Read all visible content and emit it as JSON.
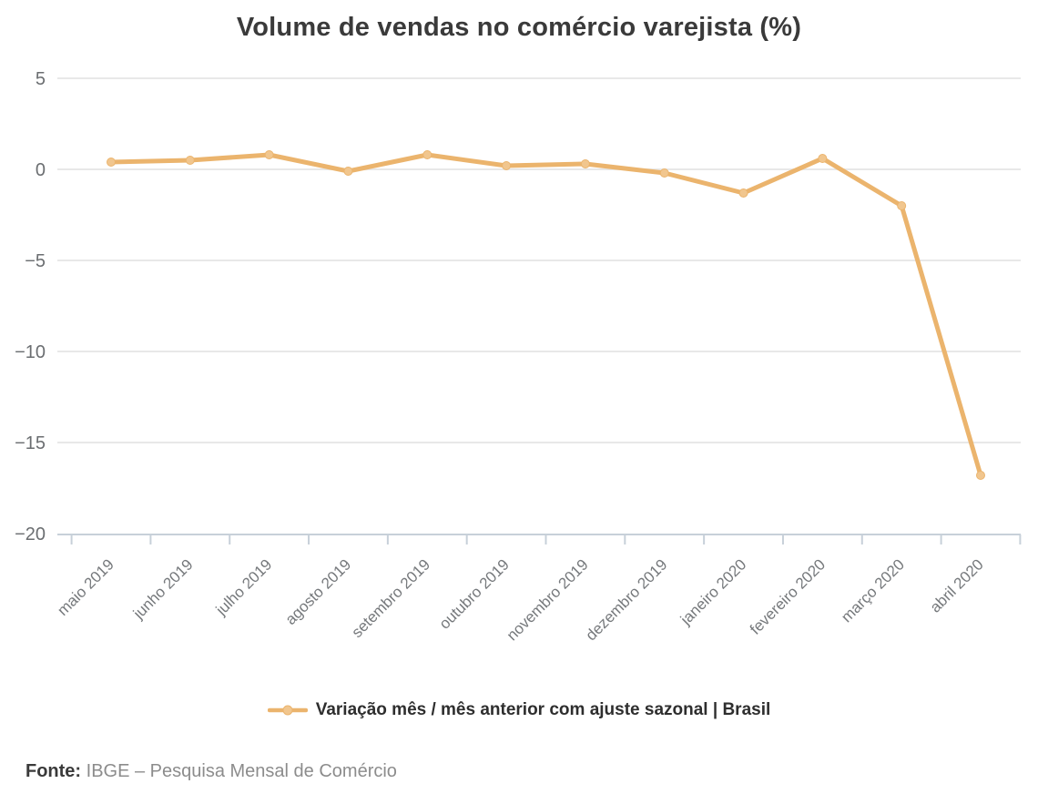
{
  "title": "Volume de vendas no comércio varejista (%)",
  "legend": {
    "label": "Variação mês / mês anterior com ajuste sazonal | Brasil"
  },
  "footer": {
    "label": "Fonte:",
    "text": "IBGE – Pesquisa Mensal de Comércio"
  },
  "colors": {
    "line": "#ebb46d",
    "marker": "#f1c68e",
    "grid": "#e8e8e8",
    "axis": "#c7d0d9",
    "ytick_text": "#6b6e71",
    "xtick_text": "#76797c",
    "title_text": "#3a3a3a",
    "legend_text": "#2e2e2e",
    "source_text": "#8c8c8c"
  },
  "chart_data": {
    "type": "line",
    "title": "Volume de vendas no comércio varejista (%)",
    "xlabel": "",
    "ylabel": "",
    "categories": [
      "maio 2019",
      "junho 2019",
      "julho 2019",
      "agosto 2019",
      "setembro 2019",
      "outubro 2019",
      "novembro 2019",
      "dezembro 2019",
      "janeiro 2020",
      "fevereiro 2020",
      "março 2020",
      "abril 2020"
    ],
    "series": [
      {
        "name": "Variação mês / mês anterior com ajuste sazonal | Brasil",
        "values": [
          0.4,
          0.5,
          0.8,
          -0.1,
          0.8,
          0.2,
          0.3,
          -0.2,
          -1.3,
          0.6,
          -2.0,
          -16.8
        ]
      }
    ],
    "ylim": [
      -20,
      5
    ],
    "yticks": [
      5,
      0,
      -5,
      -10,
      -15,
      -20
    ],
    "ytick_labels": [
      "5",
      "0",
      "−5",
      "−10",
      "−15",
      "−20"
    ],
    "grid": "horizontal",
    "legend_position": "bottom",
    "source": "Fonte: IBGE – Pesquisa Mensal de Comércio"
  }
}
